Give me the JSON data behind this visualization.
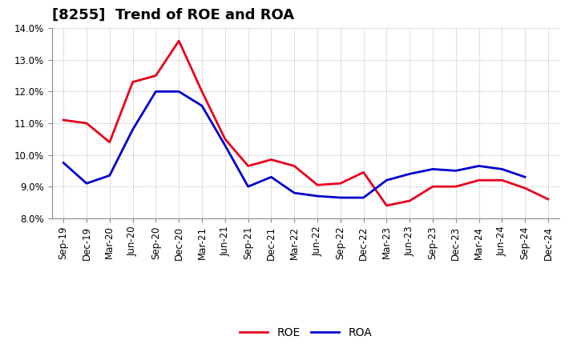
{
  "title": "[8255]  Trend of ROE and ROA",
  "labels": [
    "Sep-19",
    "Dec-19",
    "Mar-20",
    "Jun-20",
    "Sep-20",
    "Dec-20",
    "Mar-21",
    "Jun-21",
    "Sep-21",
    "Dec-21",
    "Mar-22",
    "Jun-22",
    "Sep-22",
    "Dec-22",
    "Mar-23",
    "Jun-23",
    "Sep-23",
    "Dec-23",
    "Mar-24",
    "Jun-24",
    "Sep-24",
    "Dec-24"
  ],
  "roe": [
    11.1,
    11.0,
    10.4,
    12.3,
    12.5,
    13.6,
    12.0,
    10.5,
    9.65,
    9.85,
    9.65,
    9.05,
    9.1,
    9.45,
    8.4,
    8.55,
    9.0,
    9.0,
    9.2,
    9.2,
    8.95,
    8.6
  ],
  "roa": [
    9.75,
    9.1,
    9.35,
    10.8,
    12.0,
    12.0,
    11.55,
    10.3,
    9.0,
    9.3,
    8.8,
    8.7,
    8.65,
    8.65,
    9.2,
    9.4,
    9.55,
    9.5,
    9.65,
    9.55,
    9.3,
    null
  ],
  "ylim": [
    8.0,
    14.0
  ],
  "yticks": [
    8.0,
    9.0,
    10.0,
    11.0,
    12.0,
    13.0,
    14.0
  ],
  "roe_color": "#e8001c",
  "roa_color": "#0000cc",
  "background_color": "#ffffff",
  "grid_color": "#aaaaaa",
  "title_fontsize": 13,
  "tick_fontsize": 8.5,
  "legend_fontsize": 10,
  "linewidth": 2.0
}
